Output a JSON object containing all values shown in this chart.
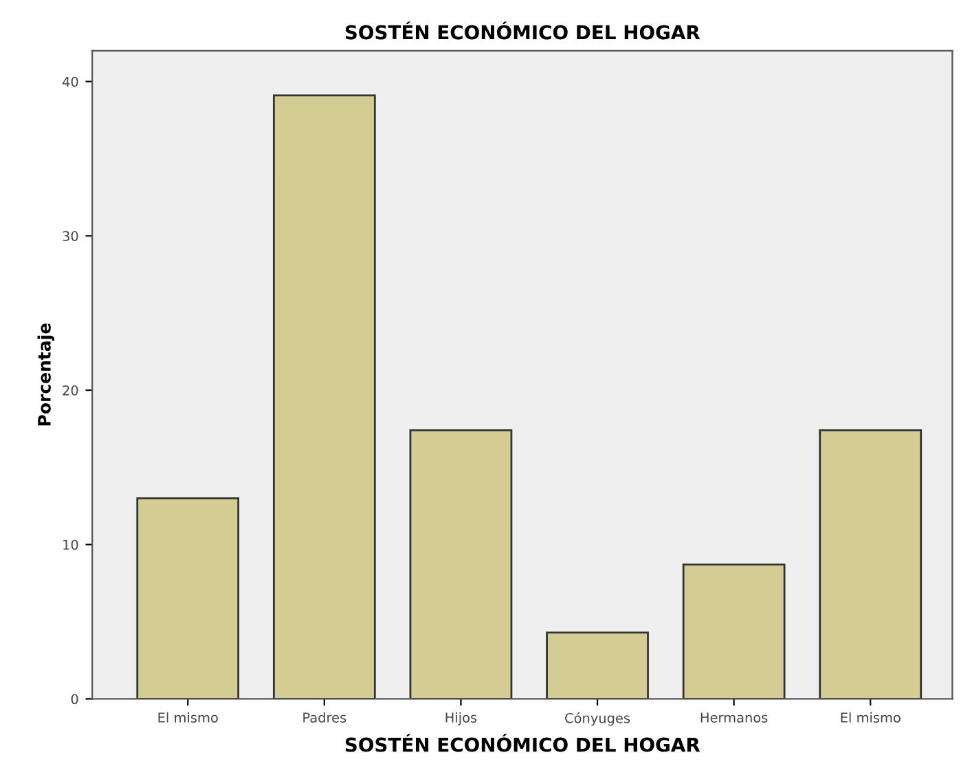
{
  "chart_data": {
    "type": "bar",
    "title": "SOSTÉN ECONÓMICO DEL HOGAR",
    "xlabel": "SOSTÉN ECONÓMICO DEL HOGAR",
    "ylabel": "Porcentaje",
    "categories": [
      "El mismo",
      "Padres",
      "Hijos",
      "Cónyuges",
      "Hermanos",
      "El mismo"
    ],
    "values": [
      13.0,
      39.1,
      17.4,
      4.3,
      8.7,
      17.4
    ],
    "color": "#d3cd93",
    "ylim": [
      0,
      42
    ],
    "yticks": [
      0,
      10,
      20,
      30,
      40
    ],
    "grid": false,
    "legend": false
  }
}
